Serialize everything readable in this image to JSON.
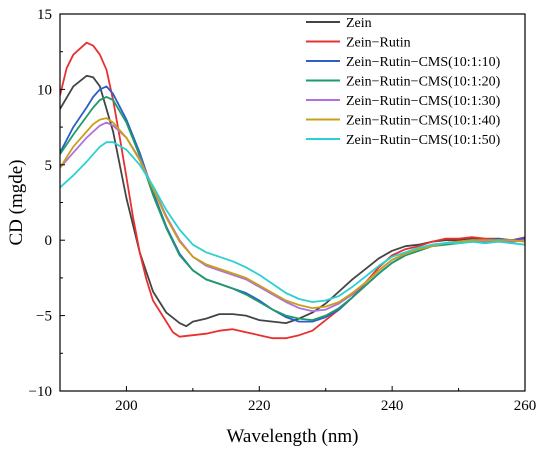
{
  "chart_data": {
    "type": "line",
    "xlabel": "Wavelength (nm)",
    "ylabel": "CD (mgde)",
    "xlim": [
      190,
      260
    ],
    "ylim": [
      -10,
      15
    ],
    "xticks": [
      200,
      220,
      240,
      260
    ],
    "yticks": [
      -10,
      -5,
      0,
      5,
      10,
      15
    ],
    "grid": false,
    "legend_position": "top-right",
    "series": [
      {
        "name": "Zein",
        "color": "#444444",
        "points": [
          [
            190,
            8.7
          ],
          [
            192,
            10.2
          ],
          [
            194,
            10.9
          ],
          [
            195,
            10.8
          ],
          [
            196,
            10.2
          ],
          [
            198,
            7.2
          ],
          [
            200,
            2.8
          ],
          [
            202,
            -0.8
          ],
          [
            204,
            -3.4
          ],
          [
            206,
            -4.8
          ],
          [
            208,
            -5.5
          ],
          [
            209,
            -5.7
          ],
          [
            210,
            -5.4
          ],
          [
            212,
            -5.2
          ],
          [
            214,
            -4.9
          ],
          [
            216,
            -4.9
          ],
          [
            218,
            -5.0
          ],
          [
            220,
            -5.3
          ],
          [
            222,
            -5.4
          ],
          [
            224,
            -5.5
          ],
          [
            226,
            -5.2
          ],
          [
            228,
            -4.8
          ],
          [
            230,
            -4.2
          ],
          [
            232,
            -3.4
          ],
          [
            234,
            -2.6
          ],
          [
            236,
            -1.9
          ],
          [
            238,
            -1.2
          ],
          [
            240,
            -0.7
          ],
          [
            242,
            -0.4
          ],
          [
            244,
            -0.3
          ],
          [
            246,
            -0.1
          ],
          [
            248,
            0.0
          ],
          [
            250,
            0.0
          ],
          [
            252,
            0.1
          ],
          [
            254,
            0.0
          ],
          [
            256,
            -0.1
          ],
          [
            258,
            0.0
          ],
          [
            260,
            0.0
          ]
        ]
      },
      {
        "name": "Zein−Rutin",
        "color": "#e83030",
        "points": [
          [
            190,
            9.6
          ],
          [
            191,
            11.4
          ],
          [
            192,
            12.3
          ],
          [
            193,
            12.7
          ],
          [
            194,
            13.1
          ],
          [
            195,
            12.9
          ],
          [
            196,
            12.3
          ],
          [
            197,
            11.3
          ],
          [
            198,
            9.3
          ],
          [
            199,
            6.8
          ],
          [
            200,
            4.2
          ],
          [
            201,
            1.5
          ],
          [
            202,
            -0.8
          ],
          [
            203,
            -2.6
          ],
          [
            204,
            -4.0
          ],
          [
            206,
            -5.4
          ],
          [
            207,
            -6.1
          ],
          [
            208,
            -6.4
          ],
          [
            210,
            -6.3
          ],
          [
            212,
            -6.2
          ],
          [
            214,
            -6.0
          ],
          [
            216,
            -5.9
          ],
          [
            218,
            -6.1
          ],
          [
            220,
            -6.3
          ],
          [
            222,
            -6.5
          ],
          [
            224,
            -6.5
          ],
          [
            226,
            -6.3
          ],
          [
            228,
            -6.0
          ],
          [
            230,
            -5.3
          ],
          [
            232,
            -4.6
          ],
          [
            234,
            -3.8
          ],
          [
            236,
            -2.8
          ],
          [
            238,
            -1.8
          ],
          [
            240,
            -1.0
          ],
          [
            242,
            -0.6
          ],
          [
            244,
            -0.4
          ],
          [
            246,
            -0.1
          ],
          [
            248,
            0.1
          ],
          [
            250,
            0.1
          ],
          [
            252,
            0.2
          ],
          [
            254,
            0.1
          ],
          [
            256,
            0.1
          ],
          [
            258,
            0.0
          ],
          [
            260,
            0.2
          ]
        ]
      },
      {
        "name": "Zein−Rutin−CMS(10:1:10)",
        "color": "#2d5fc6",
        "points": [
          [
            190,
            5.8
          ],
          [
            192,
            7.5
          ],
          [
            194,
            8.8
          ],
          [
            195,
            9.5
          ],
          [
            196,
            10.0
          ],
          [
            197,
            10.2
          ],
          [
            198,
            9.7
          ],
          [
            200,
            8.0
          ],
          [
            202,
            5.8
          ],
          [
            204,
            3.2
          ],
          [
            206,
            0.9
          ],
          [
            208,
            -0.9
          ],
          [
            210,
            -2.0
          ],
          [
            212,
            -2.6
          ],
          [
            214,
            -2.9
          ],
          [
            216,
            -3.2
          ],
          [
            218,
            -3.5
          ],
          [
            220,
            -4.0
          ],
          [
            222,
            -4.6
          ],
          [
            224,
            -5.1
          ],
          [
            226,
            -5.4
          ],
          [
            228,
            -5.4
          ],
          [
            230,
            -5.1
          ],
          [
            232,
            -4.6
          ],
          [
            234,
            -3.8
          ],
          [
            236,
            -3.0
          ],
          [
            238,
            -2.2
          ],
          [
            240,
            -1.5
          ],
          [
            242,
            -1.0
          ],
          [
            244,
            -0.7
          ],
          [
            246,
            -0.4
          ],
          [
            248,
            -0.2
          ],
          [
            250,
            -0.1
          ],
          [
            252,
            0.0
          ],
          [
            254,
            0.0
          ],
          [
            256,
            0.1
          ],
          [
            258,
            0.0
          ],
          [
            260,
            0.1
          ]
        ]
      },
      {
        "name": "Zein−Rutin−CMS(10:1:20)",
        "color": "#1f9a6a",
        "points": [
          [
            190,
            5.7
          ],
          [
            192,
            7.0
          ],
          [
            194,
            8.2
          ],
          [
            195,
            8.8
          ],
          [
            196,
            9.3
          ],
          [
            197,
            9.5
          ],
          [
            198,
            9.3
          ],
          [
            200,
            7.8
          ],
          [
            202,
            5.6
          ],
          [
            204,
            3.0
          ],
          [
            206,
            0.8
          ],
          [
            208,
            -1.0
          ],
          [
            210,
            -2.0
          ],
          [
            212,
            -2.6
          ],
          [
            214,
            -2.9
          ],
          [
            216,
            -3.2
          ],
          [
            218,
            -3.6
          ],
          [
            220,
            -4.1
          ],
          [
            222,
            -4.6
          ],
          [
            224,
            -5.0
          ],
          [
            226,
            -5.2
          ],
          [
            228,
            -5.3
          ],
          [
            230,
            -5.0
          ],
          [
            232,
            -4.5
          ],
          [
            234,
            -3.8
          ],
          [
            236,
            -3.0
          ],
          [
            238,
            -2.2
          ],
          [
            240,
            -1.5
          ],
          [
            242,
            -1.0
          ],
          [
            244,
            -0.7
          ],
          [
            246,
            -0.4
          ],
          [
            248,
            -0.3
          ],
          [
            250,
            -0.2
          ],
          [
            252,
            -0.1
          ],
          [
            254,
            -0.1
          ],
          [
            256,
            0.0
          ],
          [
            258,
            -0.1
          ],
          [
            260,
            0.0
          ]
        ]
      },
      {
        "name": "Zein−Rutin−CMS(10:1:30)",
        "color": "#b070e0",
        "points": [
          [
            190,
            4.8
          ],
          [
            192,
            5.8
          ],
          [
            194,
            6.8
          ],
          [
            195,
            7.2
          ],
          [
            196,
            7.6
          ],
          [
            197,
            7.8
          ],
          [
            198,
            7.6
          ],
          [
            200,
            6.8
          ],
          [
            202,
            5.4
          ],
          [
            204,
            3.5
          ],
          [
            206,
            1.6
          ],
          [
            208,
            0.0
          ],
          [
            210,
            -1.1
          ],
          [
            212,
            -1.7
          ],
          [
            214,
            -2.0
          ],
          [
            216,
            -2.3
          ],
          [
            218,
            -2.6
          ],
          [
            220,
            -3.1
          ],
          [
            222,
            -3.6
          ],
          [
            224,
            -4.1
          ],
          [
            226,
            -4.5
          ],
          [
            228,
            -4.7
          ],
          [
            230,
            -4.6
          ],
          [
            232,
            -4.2
          ],
          [
            234,
            -3.6
          ],
          [
            236,
            -2.8
          ],
          [
            238,
            -2.0
          ],
          [
            240,
            -1.3
          ],
          [
            242,
            -0.9
          ],
          [
            244,
            -0.6
          ],
          [
            246,
            -0.3
          ],
          [
            248,
            -0.2
          ],
          [
            250,
            -0.1
          ],
          [
            252,
            0.0
          ],
          [
            254,
            -0.1
          ],
          [
            256,
            0.0
          ],
          [
            258,
            -0.1
          ],
          [
            260,
            0.0
          ]
        ]
      },
      {
        "name": "Zein−Rutin−CMS(10:1:40)",
        "color": "#c8a018",
        "points": [
          [
            190,
            4.8
          ],
          [
            192,
            6.2
          ],
          [
            194,
            7.2
          ],
          [
            195,
            7.7
          ],
          [
            196,
            8.0
          ],
          [
            197,
            8.1
          ],
          [
            198,
            7.8
          ],
          [
            200,
            6.8
          ],
          [
            202,
            5.3
          ],
          [
            204,
            3.4
          ],
          [
            206,
            1.5
          ],
          [
            208,
            -0.1
          ],
          [
            210,
            -1.1
          ],
          [
            212,
            -1.6
          ],
          [
            214,
            -1.9
          ],
          [
            216,
            -2.2
          ],
          [
            218,
            -2.5
          ],
          [
            220,
            -3.0
          ],
          [
            222,
            -3.5
          ],
          [
            224,
            -4.0
          ],
          [
            226,
            -4.3
          ],
          [
            228,
            -4.5
          ],
          [
            230,
            -4.4
          ],
          [
            232,
            -4.1
          ],
          [
            234,
            -3.5
          ],
          [
            236,
            -2.8
          ],
          [
            238,
            -2.0
          ],
          [
            240,
            -1.3
          ],
          [
            242,
            -0.9
          ],
          [
            244,
            -0.6
          ],
          [
            246,
            -0.4
          ],
          [
            248,
            -0.2
          ],
          [
            250,
            -0.1
          ],
          [
            252,
            0.0
          ],
          [
            254,
            0.0
          ],
          [
            256,
            0.0
          ],
          [
            258,
            0.0
          ],
          [
            260,
            -0.1
          ]
        ]
      },
      {
        "name": "Zein−Rutin−CMS(10:1:50)",
        "color": "#2cd0d0",
        "points": [
          [
            190,
            3.5
          ],
          [
            192,
            4.3
          ],
          [
            194,
            5.2
          ],
          [
            195,
            5.7
          ],
          [
            196,
            6.2
          ],
          [
            197,
            6.5
          ],
          [
            198,
            6.5
          ],
          [
            200,
            6.0
          ],
          [
            202,
            5.0
          ],
          [
            204,
            3.6
          ],
          [
            206,
            2.0
          ],
          [
            208,
            0.7
          ],
          [
            210,
            -0.3
          ],
          [
            212,
            -0.8
          ],
          [
            214,
            -1.1
          ],
          [
            216,
            -1.4
          ],
          [
            218,
            -1.8
          ],
          [
            220,
            -2.3
          ],
          [
            222,
            -2.9
          ],
          [
            224,
            -3.5
          ],
          [
            226,
            -3.9
          ],
          [
            228,
            -4.1
          ],
          [
            230,
            -4.0
          ],
          [
            232,
            -3.7
          ],
          [
            234,
            -3.1
          ],
          [
            236,
            -2.4
          ],
          [
            238,
            -1.7
          ],
          [
            240,
            -1.1
          ],
          [
            242,
            -0.8
          ],
          [
            244,
            -0.5
          ],
          [
            246,
            -0.3
          ],
          [
            248,
            -0.2
          ],
          [
            250,
            -0.2
          ],
          [
            252,
            -0.1
          ],
          [
            254,
            -0.2
          ],
          [
            256,
            -0.1
          ],
          [
            258,
            -0.2
          ],
          [
            260,
            -0.3
          ]
        ]
      }
    ]
  }
}
